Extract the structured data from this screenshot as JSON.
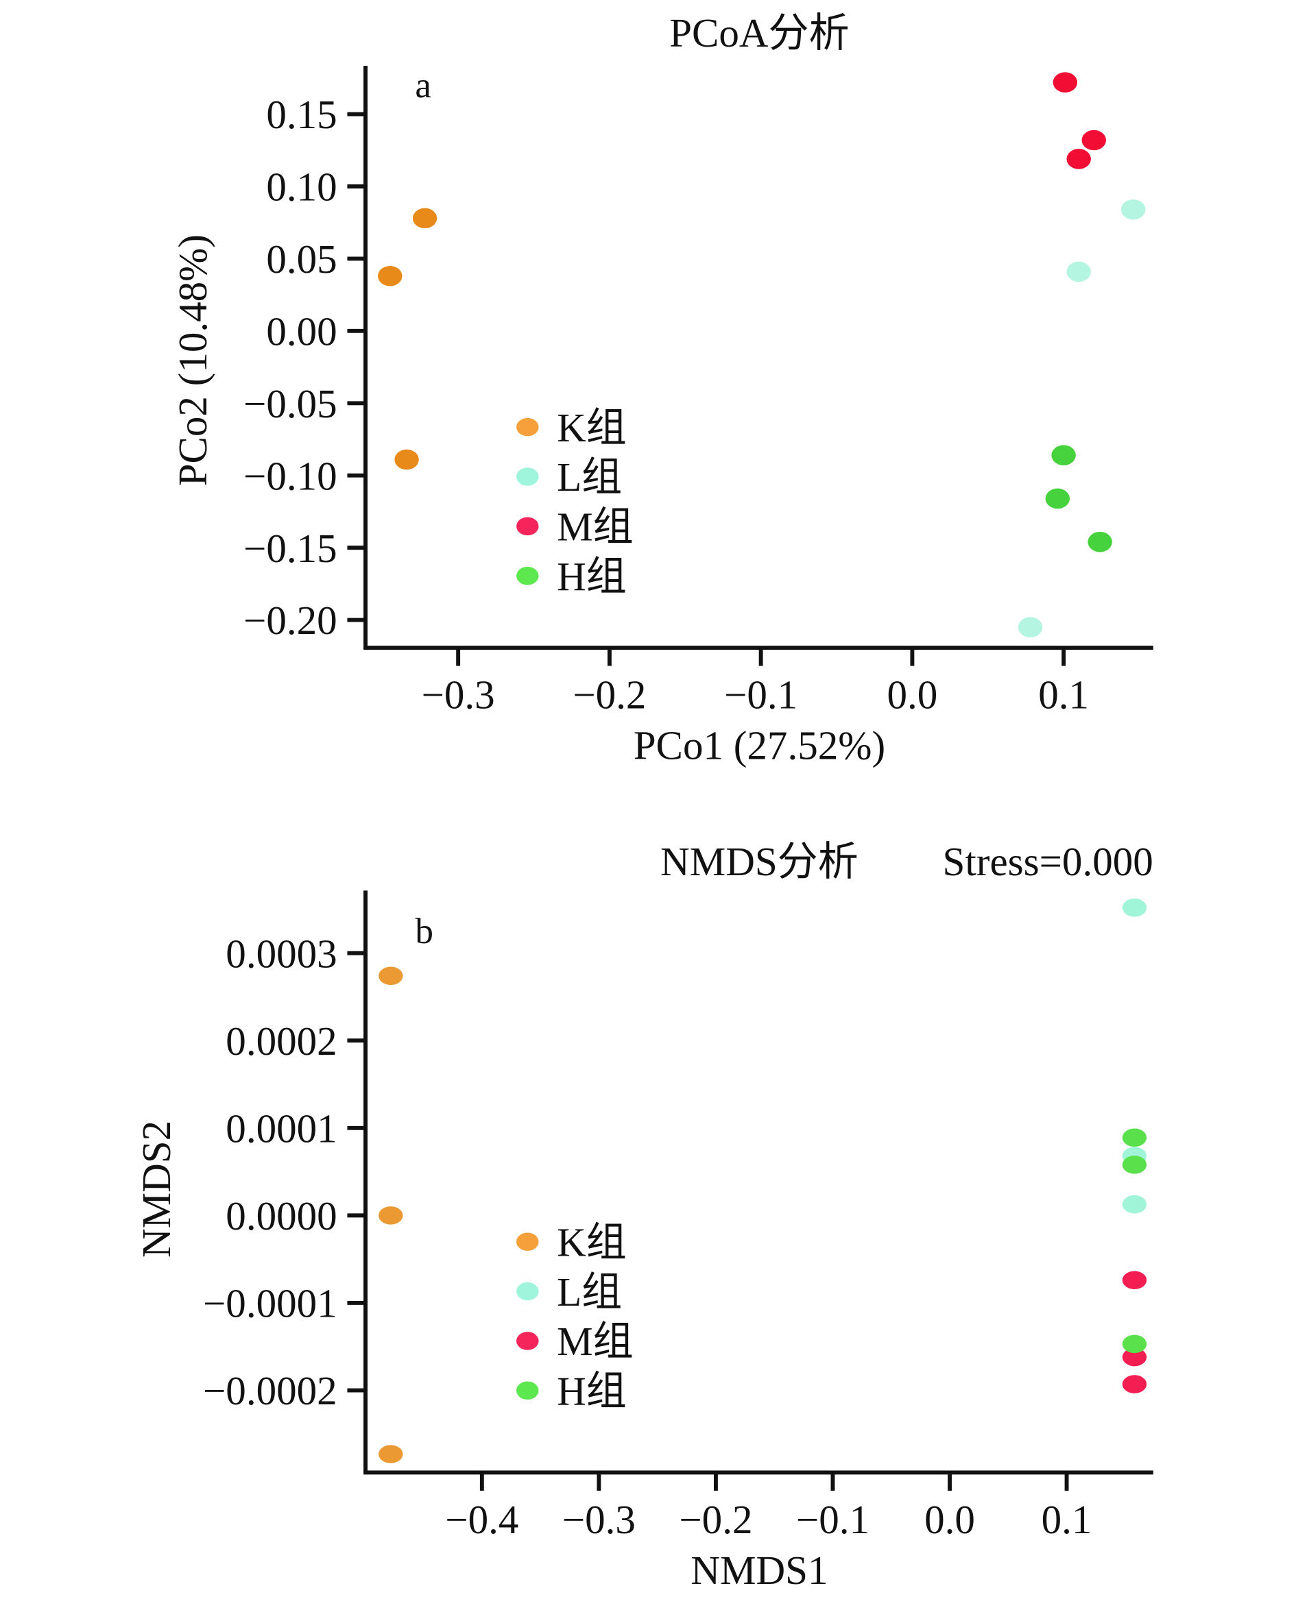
{
  "chart_data": [
    {
      "type": "scatter",
      "panel": "a",
      "title": "PCoA分析",
      "xlabel": "PCo1 (27.52%)",
      "ylabel": "PCo2 (10.48%)",
      "xlim": [
        -0.362,
        0.16
      ],
      "ylim": [
        -0.22,
        0.183
      ],
      "xticks": [
        -0.3,
        -0.2,
        -0.1,
        0.0,
        0.1
      ],
      "xtick_labels": [
        "−0.3",
        "−0.2",
        "−0.1",
        "0.0",
        "0.1"
      ],
      "yticks": [
        0.15,
        0.1,
        0.05,
        0.0,
        -0.05,
        -0.1,
        -0.15,
        -0.2
      ],
      "ytick_labels": [
        "0.15",
        "0.10",
        "0.05",
        "0.00",
        "−0.05",
        "−0.10",
        "−0.15",
        "−0.20"
      ],
      "grid": false,
      "legend_position": "center-left",
      "series": [
        {
          "name": "K组",
          "color": "#e88a1a",
          "points": [
            [
              -0.322,
              0.078
            ],
            [
              -0.345,
              0.038
            ],
            [
              -0.334,
              -0.089
            ]
          ]
        },
        {
          "name": "L组",
          "color": "#b3f5e0",
          "points": [
            [
              0.146,
              0.084
            ],
            [
              0.11,
              0.041
            ],
            [
              0.078,
              -0.205
            ]
          ]
        },
        {
          "name": "M组",
          "color": "#f20d35",
          "points": [
            [
              0.101,
              0.172
            ],
            [
              0.12,
              0.132
            ],
            [
              0.11,
              0.119
            ]
          ]
        },
        {
          "name": "H组",
          "color": "#46d23c",
          "points": [
            [
              0.1,
              -0.086
            ],
            [
              0.096,
              -0.116
            ],
            [
              0.124,
              -0.146
            ]
          ]
        }
      ],
      "legend_colors": [
        "#f5a03a",
        "#9ef5dc",
        "#f5245a",
        "#5ce84e"
      ]
    },
    {
      "type": "scatter",
      "panel": "b",
      "title": "NMDS分析",
      "subtitle": "Stress=0.000",
      "xlabel": "NMDS1",
      "ylabel": "NMDS2",
      "xlim": [
        -0.501,
        0.172
      ],
      "ylim": [
        -0.00029,
        0.00037
      ],
      "xticks": [
        -0.4,
        -0.3,
        -0.2,
        -0.1,
        0.0,
        0.1
      ],
      "xtick_labels": [
        "−0.4",
        "−0.3",
        "−0.2",
        "−0.1",
        "0.0",
        "0.1"
      ],
      "yticks": [
        0.0003,
        0.0002,
        0.0001,
        0.0,
        -0.0001,
        -0.0002
      ],
      "ytick_labels": [
        "0.0003",
        "0.0002",
        "0.0001",
        "0.0000",
        "−0.0001",
        "−0.0002"
      ],
      "grid": false,
      "legend_position": "center-left",
      "series": [
        {
          "name": "K组",
          "color": "#eb9a33",
          "points": [
            [
              -0.478,
              0.000274
            ],
            [
              -0.478,
              0.0
            ],
            [
              -0.478,
              -0.000273
            ]
          ]
        },
        {
          "name": "L组",
          "color": "#a0f5d8",
          "points": [
            [
              0.158,
              0.000352
            ],
            [
              0.158,
              6.8e-05
            ],
            [
              0.158,
              1.27e-05
            ]
          ]
        },
        {
          "name": "M组",
          "color": "#f51e52",
          "points": [
            [
              0.158,
              -7.4e-05
            ],
            [
              0.158,
              -0.000162
            ],
            [
              0.158,
              -0.000193
            ]
          ]
        },
        {
          "name": "H组",
          "color": "#5ae04a",
          "points": [
            [
              0.158,
              8.9e-05
            ],
            [
              0.158,
              5.8e-05
            ],
            [
              0.158,
              -0.000147
            ]
          ]
        }
      ],
      "legend_colors": [
        "#f5a03a",
        "#9ef5dc",
        "#f5245a",
        "#5ce84e"
      ]
    }
  ]
}
